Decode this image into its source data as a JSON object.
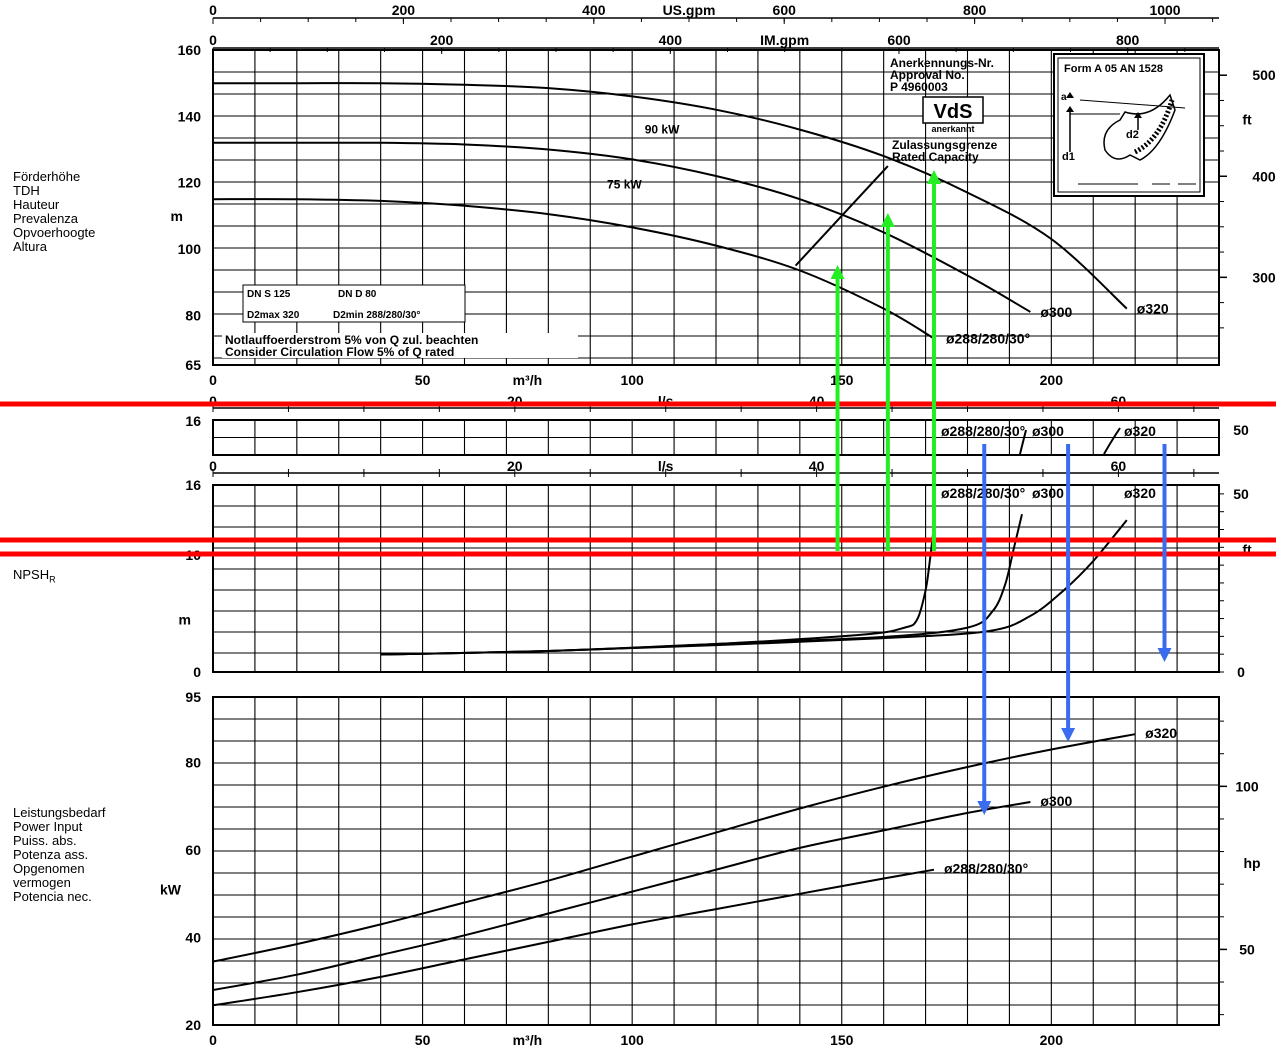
{
  "chart_data": [
    {
      "id": "head",
      "type": "line",
      "title": "",
      "ylabel_lines": [
        "Förderhöhe",
        "TDH",
        "Hauteur",
        "Prevalenza",
        "Opvoerhoogte",
        "Altura"
      ],
      "yunit_left": "m",
      "yunit_right": "ft",
      "xlabel": "m³/h",
      "xlim": [
        0,
        240
      ],
      "ylim": [
        65,
        160
      ],
      "x_ticks": [
        0,
        50,
        100,
        150,
        200
      ],
      "y_ticks": [
        65,
        80,
        100,
        120,
        140,
        160
      ],
      "y_ticks_right": [
        300,
        400,
        500
      ],
      "top_axes": [
        {
          "label": "US.gpm",
          "ticks": [
            0,
            200,
            400,
            600,
            800,
            1000
          ]
        },
        {
          "label": "IM.gpm",
          "ticks": [
            0,
            200,
            400,
            600,
            800
          ]
        }
      ],
      "series": [
        {
          "name": "ø320",
          "x": [
            0,
            20,
            40,
            60,
            80,
            100,
            120,
            140,
            160,
            180,
            200,
            218
          ],
          "y": [
            150,
            150,
            150,
            149.5,
            148.5,
            146,
            142,
            136,
            128,
            117,
            103,
            82
          ]
        },
        {
          "name": "ø300",
          "x": [
            0,
            20,
            40,
            60,
            80,
            100,
            120,
            140,
            160,
            180,
            195
          ],
          "y": [
            132,
            132,
            132,
            131.5,
            130,
            127,
            122,
            115,
            105,
            92,
            81
          ]
        },
        {
          "name": "ø288/280/30°",
          "x": [
            0,
            20,
            40,
            60,
            80,
            100,
            120,
            140,
            160,
            172
          ],
          "y": [
            115,
            115,
            114.5,
            113,
            110.5,
            106.5,
            101,
            93.5,
            82,
            73
          ]
        }
      ],
      "power_labels": [
        "90 kW",
        "75 kW"
      ],
      "rated_capacity_line": {
        "x": [
          139,
          161
        ],
        "y": [
          95,
          125
        ]
      },
      "annotations": {
        "approval": [
          "Anerkennungs-Nr.",
          "Approval No.",
          "P 4960003"
        ],
        "vds": "VdS",
        "vds_sub": "anerkannt",
        "rated": [
          "Zulassungsgrenze",
          "Rated Capacity"
        ],
        "info_box": [
          "DN S 125",
          "DN D 80",
          "D2max 320",
          "D2min 288/280/30°"
        ],
        "note": [
          "Notlauffoerderstrom 5% von Q zul. beachten",
          "Consider Circulation Flow 5% of Q rated"
        ],
        "form_box": {
          "title": "Form A 05 AN 1528",
          "labels": [
            "a",
            "d1",
            "d2"
          ]
        }
      }
    },
    {
      "id": "npsh",
      "type": "line",
      "title": "",
      "ylabel": "NPSH",
      "ylabel_sub": "R",
      "yunit_left": "m",
      "yunit_right": "ft",
      "xlabel": "l/s",
      "xlim": [
        0,
        66.7
      ],
      "ylim": [
        0,
        16
      ],
      "x_ticks": [
        0,
        20,
        40,
        60
      ],
      "y_ticks_left": [
        0,
        16
      ],
      "y_tick_hidden": "10",
      "y_ticks_right": [
        0,
        50
      ],
      "series": [
        {
          "name": "ø288/280/30°",
          "x_m3h": [
            40,
            80,
            120,
            155,
            165,
            168,
            170,
            171,
            172
          ],
          "y": [
            1.5,
            1.8,
            2.4,
            3.2,
            3.8,
            4.5,
            7,
            9.5,
            12.5
          ]
        },
        {
          "name": "ø300",
          "x_m3h": [
            40,
            80,
            120,
            160,
            180,
            186,
            189,
            191,
            193
          ],
          "y": [
            1.5,
            1.8,
            2.4,
            3.0,
            3.8,
            5.2,
            7.5,
            10.5,
            13.5
          ]
        },
        {
          "name": "ø320",
          "x_m3h": [
            40,
            80,
            120,
            160,
            185,
            195,
            203,
            210,
            218
          ],
          "y": [
            1.5,
            1.8,
            2.3,
            2.9,
            3.5,
            4.8,
            7,
            9.5,
            13
          ]
        }
      ],
      "duplicate_band_labels": [
        "ø288/280/30°",
        "ø300",
        "ø320"
      ]
    },
    {
      "id": "power",
      "type": "line",
      "title": "",
      "ylabel_lines": [
        "Leistungsbedarf",
        "Power Input",
        "Puiss. abs.",
        "Potenza ass.",
        "Opgenomen",
        "vermogen",
        "Potencia nec."
      ],
      "yunit_left": "kW",
      "yunit_right": "hp",
      "xlabel": "m³/h",
      "xlim": [
        0,
        240
      ],
      "ylim": [
        20,
        95
      ],
      "x_ticks": [
        0,
        50,
        100,
        150,
        200
      ],
      "y_ticks": [
        20,
        40,
        60,
        80,
        95
      ],
      "y_ticks_right": [
        50,
        100
      ],
      "series": [
        {
          "name": "ø320",
          "x": [
            0,
            20,
            40,
            60,
            80,
            100,
            120,
            140,
            160,
            180,
            200,
            220
          ],
          "y": [
            34.5,
            38.5,
            43,
            48,
            53,
            58.5,
            64,
            69.5,
            74.5,
            79,
            83,
            86.5
          ]
        },
        {
          "name": "ø300",
          "x": [
            0,
            20,
            40,
            60,
            80,
            100,
            120,
            140,
            160,
            180,
            195
          ],
          "y": [
            28,
            31.5,
            36,
            40.5,
            45.5,
            50.5,
            55.5,
            60.5,
            64.5,
            68.5,
            71
          ]
        },
        {
          "name": "ø288/280/30°",
          "x": [
            0,
            20,
            40,
            60,
            80,
            100,
            120,
            140,
            160,
            172
          ],
          "y": [
            24.5,
            27.5,
            31,
            35,
            39,
            43,
            46.5,
            50,
            53.5,
            55.5
          ]
        }
      ]
    }
  ],
  "overlays": {
    "colors": {
      "red": "#ff0000",
      "green": "#22ee22",
      "blue": "#3a6cf0"
    },
    "green_arrows_x_m3h": [
      149,
      161,
      172
    ],
    "blue_arrows_x_m3h": [
      184,
      204,
      227
    ]
  }
}
